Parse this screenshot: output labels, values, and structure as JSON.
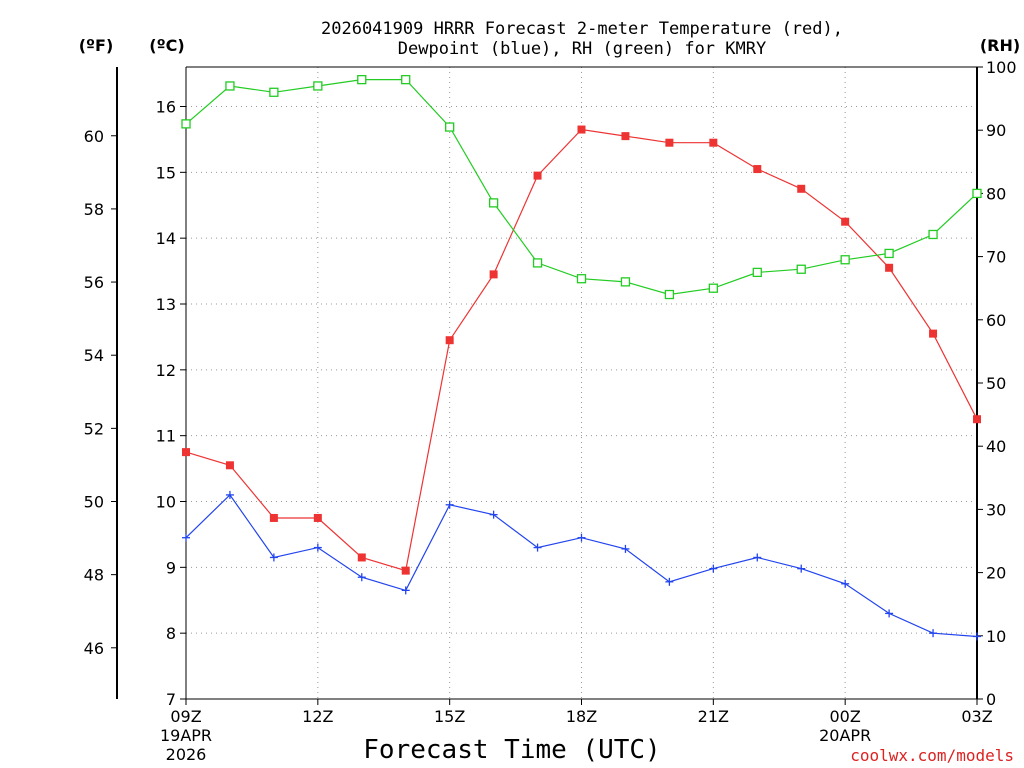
{
  "title_line1": "2026041909 HRRR Forecast 2-meter Temperature (red),",
  "title_line2": "Dewpoint (blue), RH (green) for KMRY",
  "unit_f": "(ºF)",
  "unit_c": "(ºC)",
  "unit_rh": "(RH)",
  "xlabel": "Forecast Time (UTC)",
  "credit": "coolwx.com/models",
  "colors": {
    "temperature": "#ee3333",
    "dewpoint": "#2244ee",
    "rh": "#22cc22",
    "credit": "#dd2222"
  },
  "chart_data": {
    "type": "line",
    "title": "2026041909 HRRR Forecast 2-meter Temperature (red), Dewpoint (blue), RH (green) for KMRY",
    "xlabel": "Forecast Time (UTC)",
    "x_hours": [
      0,
      1,
      2,
      3,
      4,
      5,
      6,
      7,
      8,
      9,
      10,
      11,
      12,
      13,
      14,
      15,
      16,
      17,
      18
    ],
    "xlim": [
      0,
      18
    ],
    "x_ticks": [
      {
        "hour": 0,
        "label": "09Z",
        "sub1": "19APR",
        "sub2": "2026"
      },
      {
        "hour": 3,
        "label": "12Z",
        "sub1": "",
        "sub2": ""
      },
      {
        "hour": 6,
        "label": "15Z",
        "sub1": "",
        "sub2": ""
      },
      {
        "hour": 9,
        "label": "18Z",
        "sub1": "",
        "sub2": ""
      },
      {
        "hour": 12,
        "label": "21Z",
        "sub1": "",
        "sub2": ""
      },
      {
        "hour": 15,
        "label": "00Z",
        "sub1": "20APR",
        "sub2": ""
      },
      {
        "hour": 18,
        "label": "03Z",
        "sub1": "",
        "sub2": ""
      }
    ],
    "ylim_c": [
      7,
      16.6
    ],
    "y_ticks_c": [
      7,
      8,
      9,
      10,
      11,
      12,
      13,
      14,
      15,
      16
    ],
    "y_ticks_f": [
      46,
      48,
      50,
      52,
      54,
      56,
      58,
      60
    ],
    "ylim_rh": [
      0,
      100
    ],
    "y_ticks_rh": [
      0,
      10,
      20,
      30,
      40,
      50,
      60,
      70,
      80,
      90,
      100
    ],
    "series": [
      {
        "name": "Temperature",
        "axis": "celsius",
        "marker": "filled-square",
        "values": [
          10.75,
          10.55,
          9.75,
          9.75,
          9.15,
          8.95,
          12.45,
          13.45,
          14.95,
          15.65,
          15.55,
          15.45,
          15.45,
          15.05,
          14.75,
          14.25,
          13.55,
          12.55,
          11.25
        ]
      },
      {
        "name": "Dewpoint",
        "axis": "celsius",
        "marker": "plus",
        "values": [
          9.45,
          10.1,
          9.15,
          9.3,
          8.85,
          8.65,
          9.95,
          9.8,
          9.3,
          9.45,
          9.28,
          8.78,
          8.98,
          9.15,
          8.98,
          8.75,
          8.3,
          8.0,
          7.95
        ]
      },
      {
        "name": "RH",
        "axis": "rh",
        "marker": "open-square",
        "values": [
          91,
          97,
          96,
          97,
          98,
          98,
          90.5,
          78.5,
          69,
          66.5,
          66,
          64,
          65,
          67.5,
          68,
          69.5,
          70.5,
          73.5,
          80
        ]
      }
    ]
  }
}
